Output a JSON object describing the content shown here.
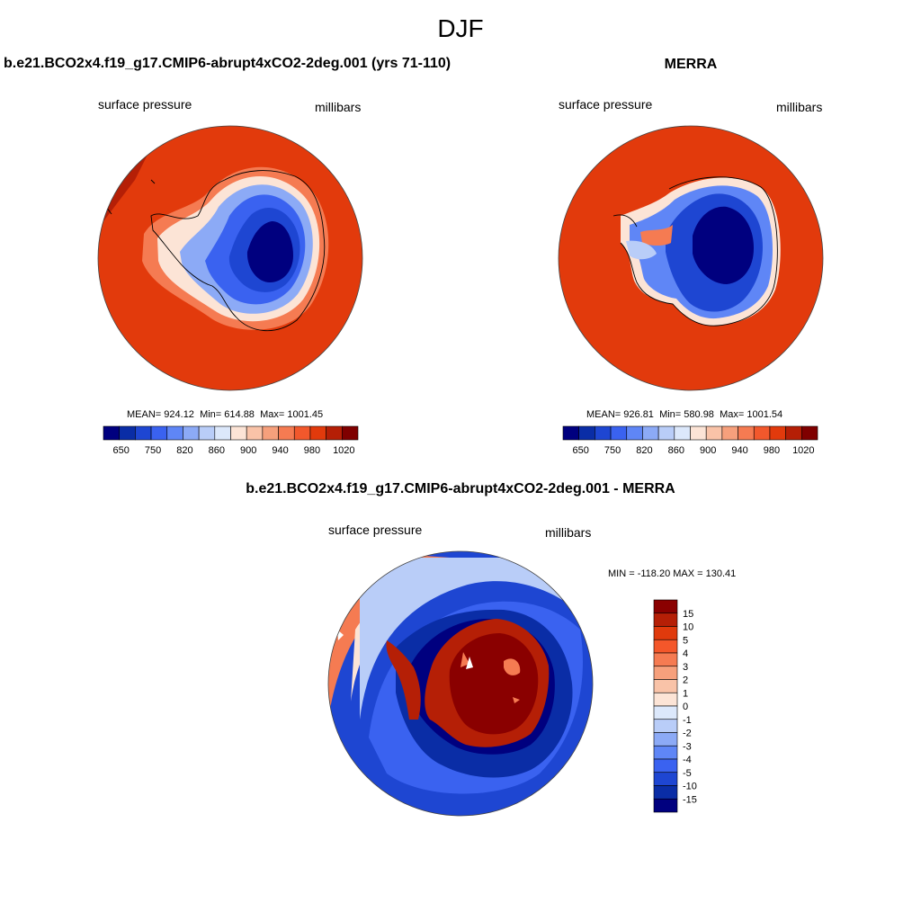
{
  "title": "DJF",
  "panels": [
    {
      "id": "model",
      "title": "b.e21.BCO2x4.f19_g17.CMIP6-abrupt4xCO2-2deg.001 (yrs 71-110)",
      "variable_label": "surface pressure",
      "units_label": "millibars",
      "stats": {
        "mean_label": "MEAN=",
        "mean": "924.12",
        "min_label": "Min=",
        "min": "614.88",
        "max_label": "Max=",
        "max": "1001.45"
      },
      "colorbar_ticks": [
        "650",
        "750",
        "820",
        "860",
        "900",
        "940",
        "980",
        "1020"
      ]
    },
    {
      "id": "obs",
      "title": "MERRA",
      "variable_label": "surface pressure",
      "units_label": "millibars",
      "stats": {
        "mean_label": "MEAN=",
        "mean": "926.81",
        "min_label": "Min=",
        "min": "580.98",
        "max_label": "Max=",
        "max": "1001.54"
      },
      "colorbar_ticks": [
        "650",
        "750",
        "820",
        "860",
        "900",
        "940",
        "980",
        "1020"
      ]
    }
  ],
  "diff_panel": {
    "title": "b.e21.BCO2x4.f19_g17.CMIP6-abrupt4xCO2-2deg.001 - MERRA",
    "variable_label": "surface pressure",
    "units_label": "millibars",
    "range_label": "MIN = -118.20  MAX = 130.41",
    "colorbar_ticks": [
      "15",
      "10",
      "5",
      "4",
      "3",
      "2",
      "1",
      "0",
      "-1",
      "-2",
      "-3",
      "-4",
      "-5",
      "-10",
      "-15"
    ]
  },
  "colors": {
    "abs_scale": [
      "#00007f",
      "#0a2da6",
      "#1e46d2",
      "#3a62f0",
      "#5f86f6",
      "#8caaf6",
      "#b9cdf8",
      "#dce8fb",
      "#fce4d6",
      "#f9c3a8",
      "#f6a07c",
      "#f57b52",
      "#f2582c",
      "#e23a0c",
      "#b51f06",
      "#7f0000"
    ],
    "diff_scale": [
      "#8a0000",
      "#b51f06",
      "#e03a0c",
      "#f4572a",
      "#f57b52",
      "#f6a07c",
      "#f9c3a8",
      "#fce4d6",
      "#dce8fb",
      "#b9cdf8",
      "#8caaf6",
      "#5f86f6",
      "#3a62f0",
      "#1e46d2",
      "#0a2da6",
      "#00007f"
    ],
    "ocean_abs": "#e23a0c",
    "coast_line": "#000000"
  },
  "map": {
    "projection": "south polar stereographic"
  }
}
